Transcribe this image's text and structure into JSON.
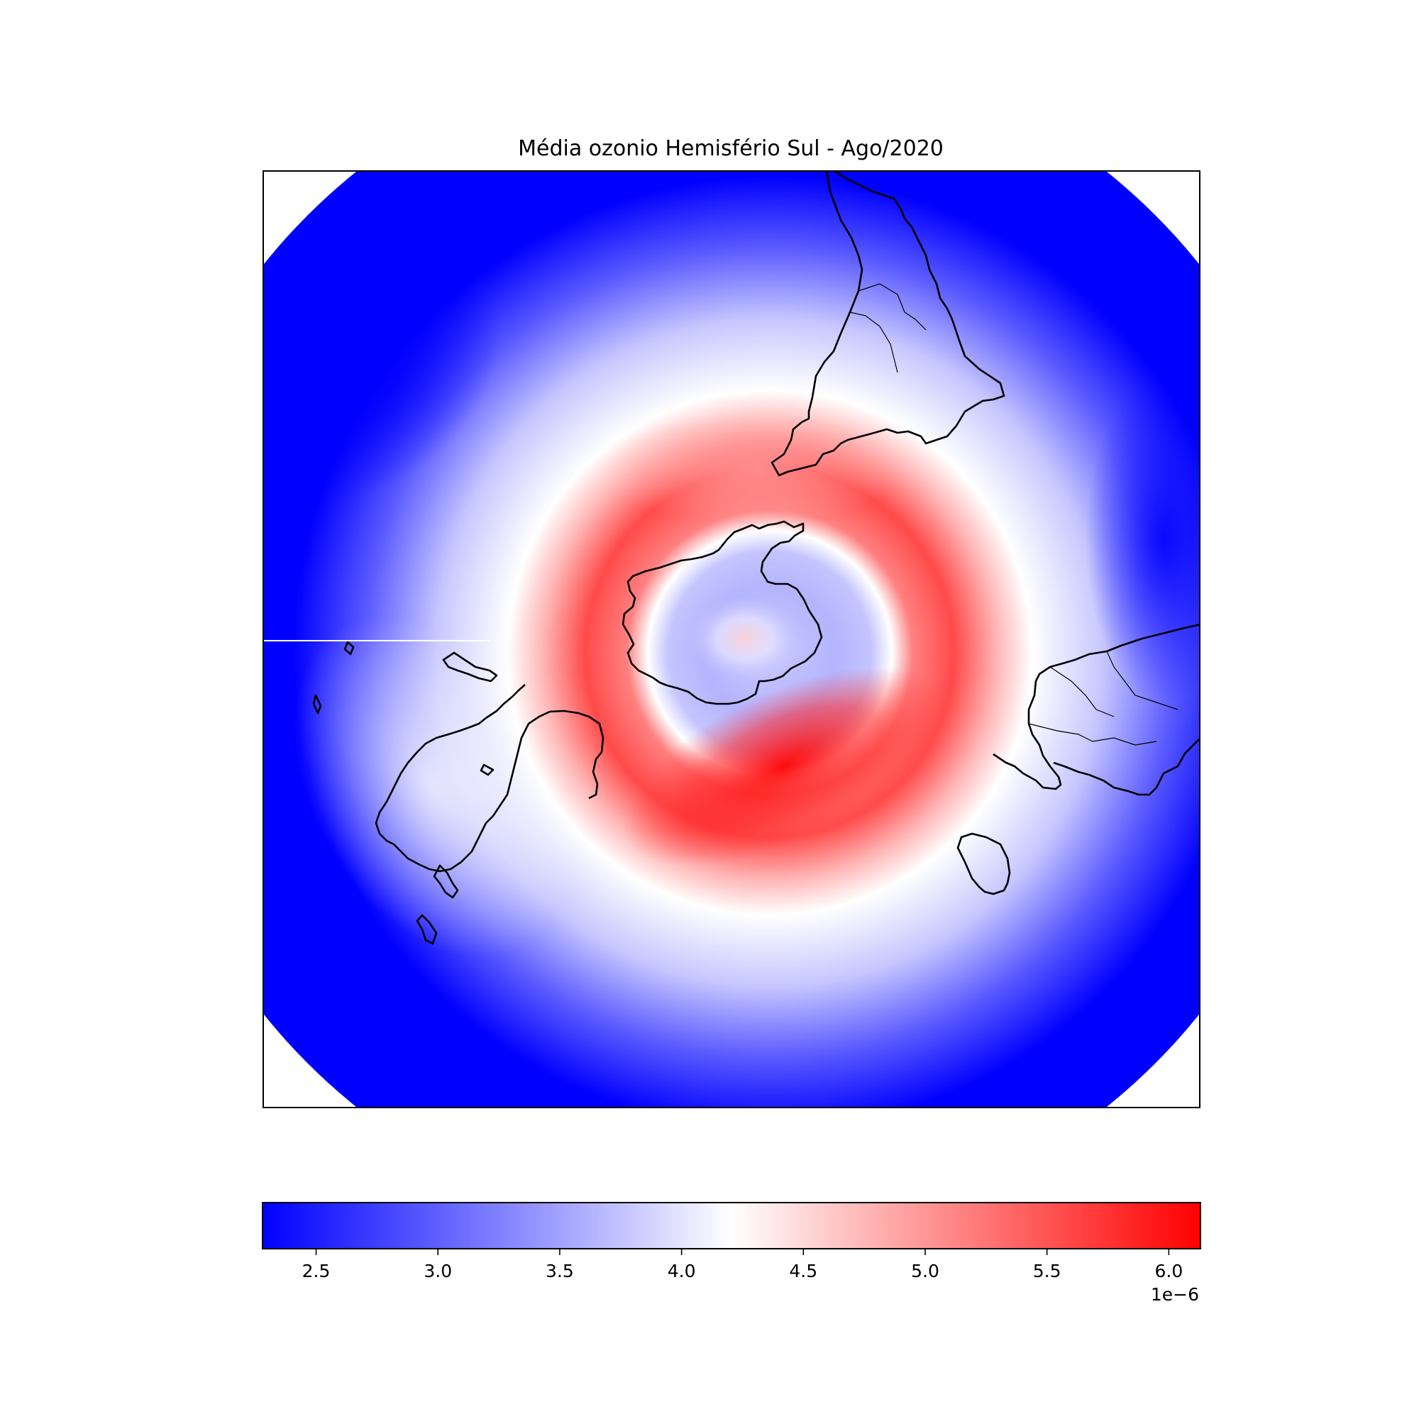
{
  "chart_data": {
    "type": "heatmap",
    "title": "Média ozonio Hemisfério Sul - Ago/2020",
    "projection": "south-polar-stereographic",
    "colormap": "bwr",
    "colors": {
      "low": "#0000ff",
      "mid": "#ffffff",
      "high": "#ff0000"
    },
    "vmin": 2.28,
    "vmax": 6.13,
    "colorbar": {
      "orientation": "horizontal",
      "placement": "bottom",
      "ticks": [
        "2.5",
        "3.0",
        "3.5",
        "4.0",
        "4.5",
        "5.0",
        "5.5",
        "6.0"
      ],
      "tick_values": [
        2.5,
        3.0,
        3.5,
        4.0,
        4.5,
        5.0,
        5.5,
        6.0
      ],
      "multiplier": "1e−6"
    },
    "field_summary": {
      "polar_core": 3.6,
      "collar_max": 6.1,
      "collar_max_sector": "lower-right of pole",
      "outer_band": 2.4
    },
    "coastlines": [
      "South America",
      "Antarctica",
      "Australia",
      "Africa",
      "Madagascar",
      "New Zealand"
    ]
  }
}
